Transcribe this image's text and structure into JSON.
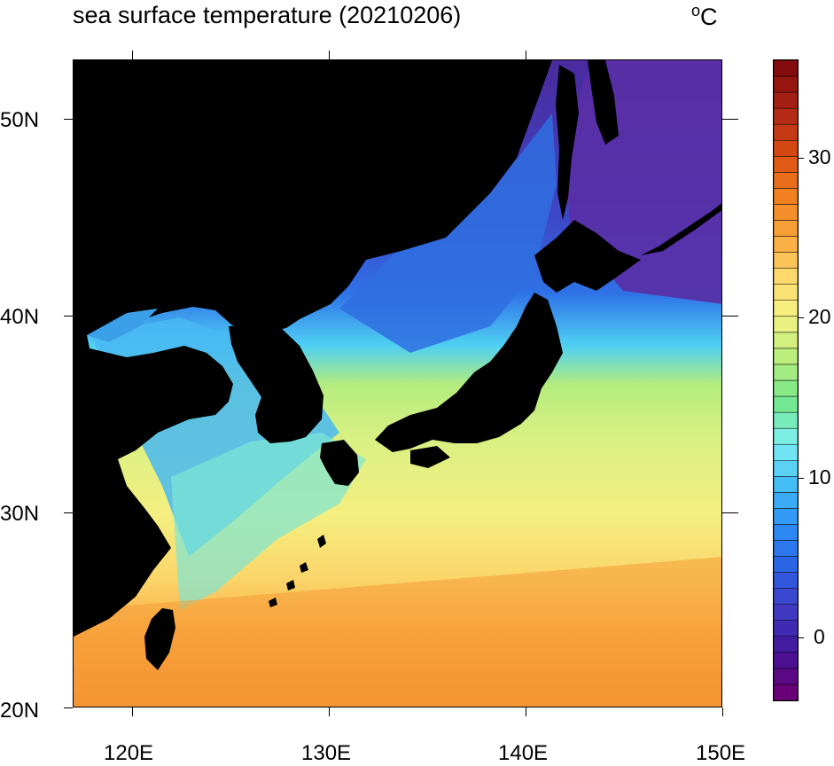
{
  "title": "sea surface temperature (20210206)",
  "unit_prefix": "o",
  "unit_letter": "C",
  "lon_labels": [
    "120E",
    "130E",
    "140E",
    "150E"
  ],
  "lat_labels": [
    "50N",
    "40N",
    "30N",
    "20N"
  ],
  "colorbar_labels": [
    "30",
    "20",
    "10",
    "0"
  ],
  "colors": {
    "land": "#000000",
    "colorbar_stops": [
      "#6a0077",
      "#43159b",
      "#3f3cc5",
      "#2c63e6",
      "#2e8ff5",
      "#44bdf5",
      "#7ff0f2",
      "#71e88a",
      "#b8ee7d",
      "#f2f381",
      "#fdd86a",
      "#f9a43a",
      "#f07d1f",
      "#d64b12",
      "#ad2515",
      "#840c0c"
    ]
  },
  "map": {
    "lon_range": [
      117,
      150
    ],
    "lat_range": [
      20,
      53
    ],
    "colorbar_range": [
      -4,
      36
    ]
  }
}
